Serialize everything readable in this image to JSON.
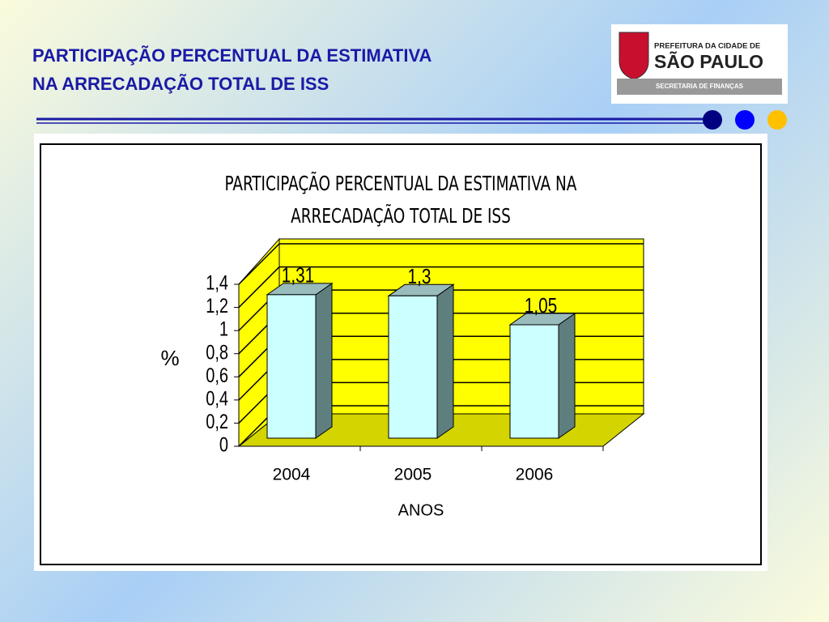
{
  "slide": {
    "title_lines": [
      "PARTICIPAÇÃO PERCENTUAL DA ESTIMATIVA",
      "NA ARRECADAÇÃO TOTAL DE ISS"
    ],
    "logo": {
      "line1": "PREFEITURA DA CIDADE DE",
      "line2": "SÃO PAULO",
      "line3": "SECRETARIA DE FINANÇAS"
    }
  },
  "chart_data": {
    "type": "bar3d",
    "title_lines": [
      "PARTICIPAÇÃO PERCENTUAL DA ESTIMATIVA NA",
      "ARRECADAÇÃO TOTAL DE ISS"
    ],
    "categories": [
      "2004",
      "2005",
      "2006"
    ],
    "values": [
      1.31,
      1.3,
      1.05
    ],
    "value_labels": [
      "1,31",
      "1,3",
      "1,05"
    ],
    "color": "#ccffff",
    "wall_color": "#ffff00",
    "y_label": "%",
    "x_label": "ANOS",
    "ylim": [
      0,
      1.4
    ],
    "yticks": [
      0,
      {
        "value": 0.2,
        "label": "0,2"
      },
      {
        "value": 0.4,
        "label": "0,4"
      },
      {
        "value": 0.6,
        "label": "0,6"
      },
      {
        "value": 0.8,
        "label": "0,8"
      },
      1,
      {
        "value": 1.2,
        "label": "1,2"
      },
      {
        "value": 1.4,
        "label": "1,4"
      }
    ],
    "grid": true
  }
}
